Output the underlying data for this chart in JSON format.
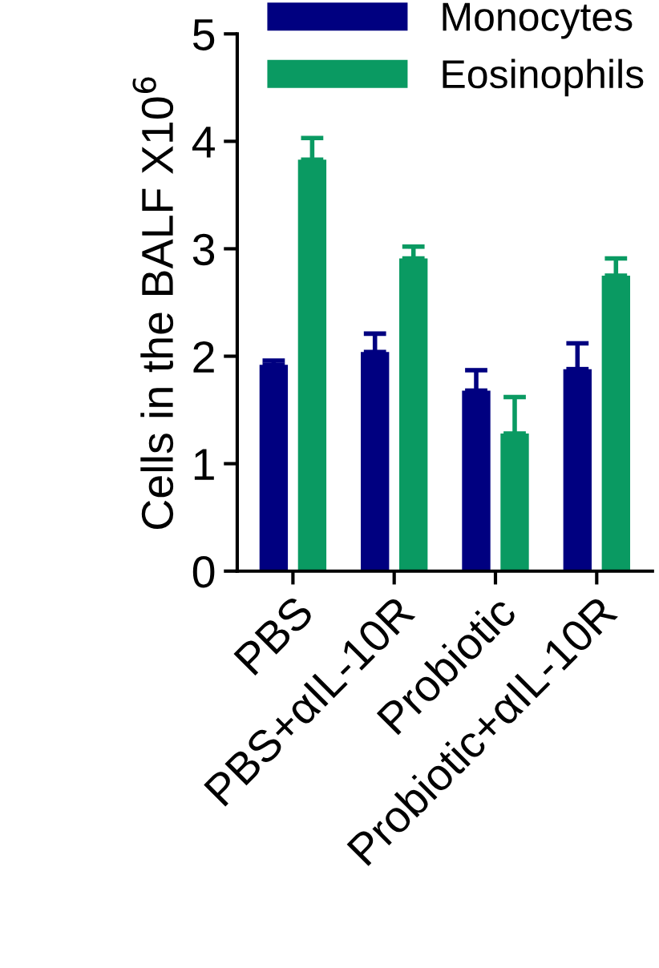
{
  "chart_data": {
    "type": "bar",
    "ylabel": "Cells in the BALF X10$^{6}$",
    "categories": [
      "PBS",
      "PBS+αIL-10R",
      "Probiotic",
      "Probiotic+αIL-10R"
    ],
    "series": [
      {
        "name": "Monocytes",
        "color": "#000080",
        "values": [
          1.92,
          2.04,
          1.68,
          1.88
        ],
        "errors": [
          [
            1.92,
            1.96
          ],
          [
            2.04,
            2.21
          ],
          [
            1.68,
            1.87
          ],
          [
            1.88,
            2.12
          ]
        ]
      },
      {
        "name": "Eosinophils",
        "color": "#0a9a62",
        "values": [
          3.83,
          2.91,
          1.28,
          2.75
        ],
        "errors": [
          [
            3.83,
            4.03
          ],
          [
            2.91,
            3.02
          ],
          [
            1.28,
            1.62
          ],
          [
            2.75,
            2.91
          ]
        ]
      }
    ],
    "ylim": [
      0,
      5
    ],
    "yticks": [
      0,
      1,
      2,
      3,
      4,
      5
    ],
    "grid": false,
    "legend": "top right"
  }
}
